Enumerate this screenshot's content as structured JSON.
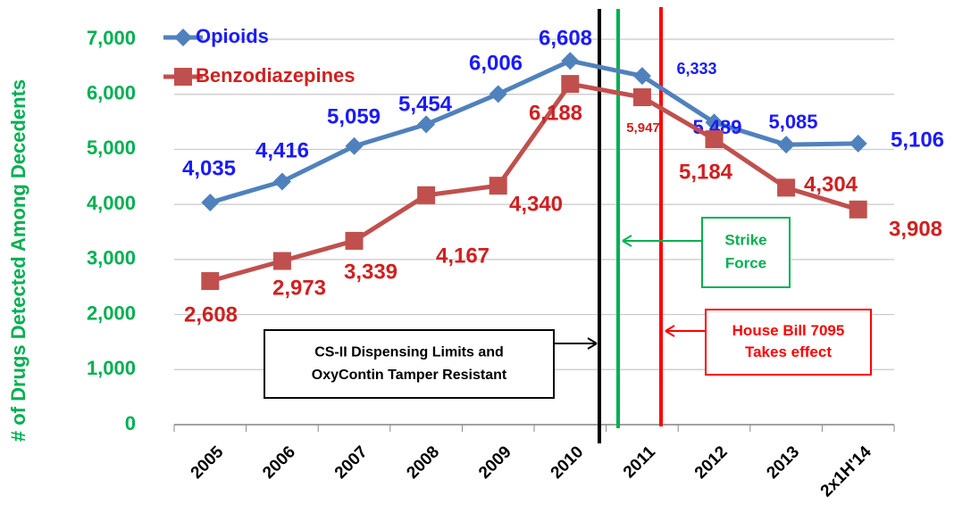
{
  "chart_data": {
    "type": "line",
    "y_axis_label": "# of Drugs Detected Among Decedents",
    "categories": [
      "2005",
      "2006",
      "2007",
      "2008",
      "2009",
      "2010",
      "2011",
      "2012",
      "2013",
      "2x1H'14"
    ],
    "series": [
      {
        "name": "Opioids",
        "color": "#4f81bd",
        "label_color": "#1a1aff",
        "values": [
          4035,
          4416,
          5059,
          5454,
          6006,
          6608,
          6333,
          5489,
          5085,
          5106
        ],
        "value_labels": [
          "4,035",
          "4,416",
          "5,059",
          "5,454",
          "6,006",
          "6,608",
          "6,333",
          "5,489",
          "5,085",
          "5,106"
        ]
      },
      {
        "name": "Benzodiazepines",
        "color": "#c0504d",
        "label_color": "#d02020",
        "values": [
          2608,
          2973,
          3339,
          4167,
          4340,
          6188,
          5947,
          5184,
          4304,
          3908
        ],
        "value_labels": [
          "2,608",
          "2,973",
          "3,339",
          "4,167",
          "4,340",
          "6,188",
          "5,947",
          "5,184",
          "4,304",
          "3,908"
        ]
      }
    ],
    "ylim": [
      0,
      7000
    ],
    "yticks": [
      0,
      {
        "value": 1000,
        "label": "1,000"
      },
      {
        "value": 2000,
        "label": "2,000"
      },
      {
        "value": 3000,
        "label": "3,000"
      },
      {
        "value": 4000,
        "label": "4,000"
      },
      {
        "value": 5000,
        "label": "5,000"
      },
      {
        "value": 6000,
        "label": "6,000"
      },
      {
        "value": 7000,
        "label": "7,000"
      }
    ],
    "grid": true,
    "annotations": [
      {
        "lines": [
          "CS-II Dispensing Limits and",
          "OxyContin Tamper Resistant"
        ],
        "color": "#000000"
      },
      {
        "lines": [
          "Strike",
          "Force"
        ],
        "color": "#00b050"
      },
      {
        "lines": [
          "House Bill 7095",
          "Takes effect"
        ],
        "color": "#ff0000"
      }
    ]
  }
}
